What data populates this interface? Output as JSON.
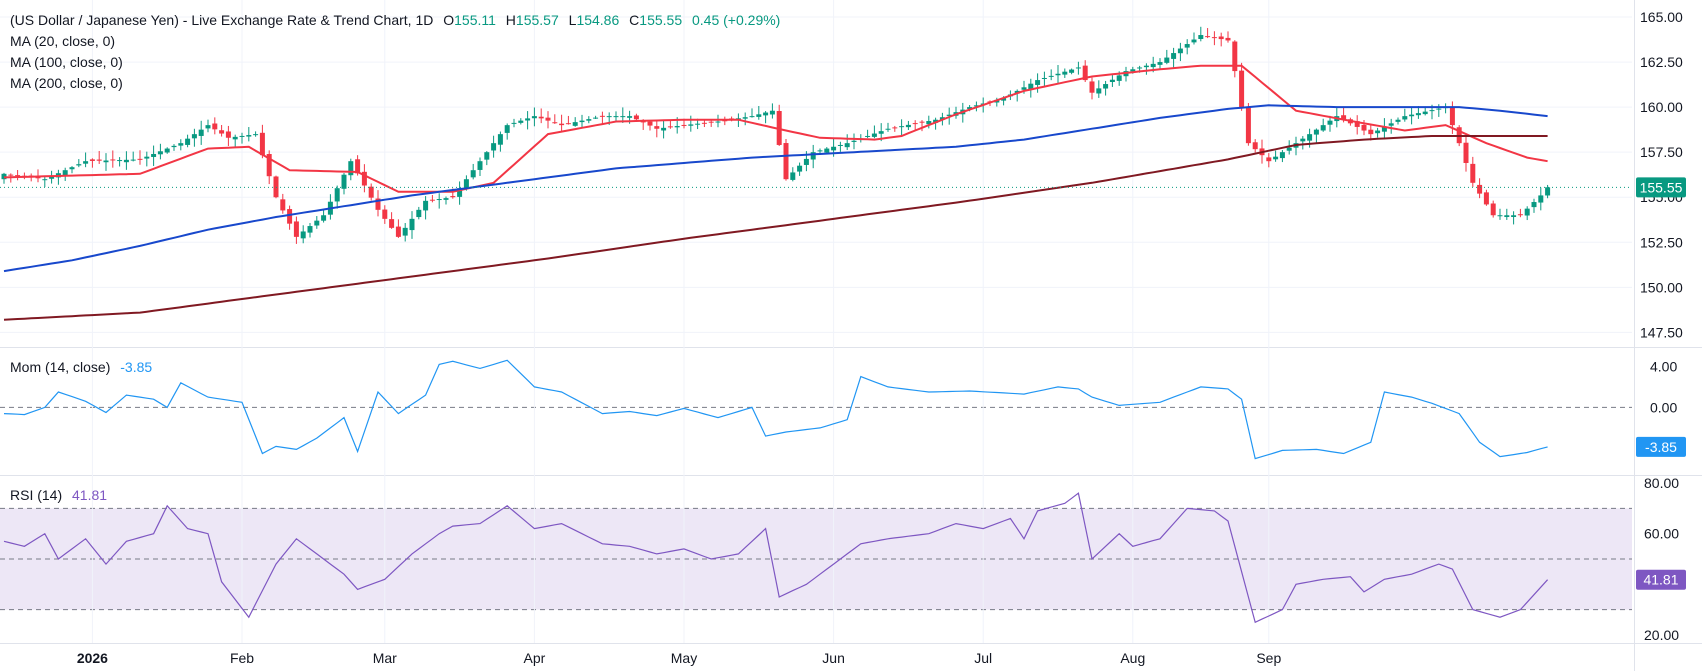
{
  "header": {
    "title": "(US Dollar / Japanese Yen) - Live Exchange Rate & Trend Chart, 1D",
    "open_label": "O",
    "open": "155.11",
    "high_label": "H",
    "high": "155.57",
    "low_label": "L",
    "low": "154.86",
    "close_label": "C",
    "close": "155.55",
    "change": "0.45 (+0.29%)",
    "ma1": "MA (20, close, 0)",
    "ma2": "MA (100, close, 0)",
    "ma3": "MA (200, close, 0)"
  },
  "mom_pane": {
    "label": "Mom (14, close)",
    "value": "-3.85"
  },
  "rsi_pane": {
    "label": "RSI (14)",
    "value": "41.81"
  },
  "colors": {
    "up": "#089981",
    "down": "#f23645",
    "ma20": "#f23645",
    "ma100": "#1848cc",
    "ma200": "#801922",
    "mom": "#2196f3",
    "rsi": "#7e57c2",
    "rsi_band": "#ede7f6",
    "grid": "#f0f3fa",
    "text": "#131722"
  },
  "chart_data": [
    {
      "type": "candlestick",
      "title": "(US Dollar / Japanese Yen) - Live Exchange Rate & Trend Chart, 1D",
      "x_ticks": [
        "2026",
        "Feb",
        "Mar",
        "Apr",
        "May",
        "Jun",
        "Jul",
        "Aug",
        "Sep"
      ],
      "y_ticks": [
        "147.50",
        "150.00",
        "152.50",
        "155.00",
        "157.50",
        "160.00",
        "162.50",
        "165.00"
      ],
      "ylim": [
        146.8,
        165.5
      ],
      "last_price": "155.55",
      "close_anchors": [
        [
          0,
          156.3
        ],
        [
          6,
          156.0
        ],
        [
          12,
          157.0
        ],
        [
          20,
          157.1
        ],
        [
          26,
          158.0
        ],
        [
          30,
          159.0
        ],
        [
          33,
          158.3
        ],
        [
          37,
          158.5
        ],
        [
          40,
          155.0
        ],
        [
          43,
          152.8
        ],
        [
          47,
          154.0
        ],
        [
          51,
          157.0
        ],
        [
          55,
          154.3
        ],
        [
          58,
          152.8
        ],
        [
          62,
          154.8
        ],
        [
          66,
          155.0
        ],
        [
          70,
          157.0
        ],
        [
          74,
          159.0
        ],
        [
          78,
          159.5
        ],
        [
          82,
          159.0
        ],
        [
          88,
          159.5
        ],
        [
          92,
          159.5
        ],
        [
          96,
          158.8
        ],
        [
          100,
          159.0
        ],
        [
          105,
          159.2
        ],
        [
          110,
          159.5
        ],
        [
          113,
          159.8
        ],
        [
          115,
          156.0
        ],
        [
          119,
          157.5
        ],
        [
          124,
          158.0
        ],
        [
          130,
          158.8
        ],
        [
          137,
          159.3
        ],
        [
          142,
          160.0
        ],
        [
          147,
          160.5
        ],
        [
          152,
          161.5
        ],
        [
          158,
          162.2
        ],
        [
          160,
          160.8
        ],
        [
          165,
          162.0
        ],
        [
          170,
          162.5
        ],
        [
          176,
          164.0
        ],
        [
          180,
          163.7
        ],
        [
          181,
          162.0
        ],
        [
          183,
          158.0
        ],
        [
          186,
          157.0
        ],
        [
          190,
          158.0
        ],
        [
          196,
          159.5
        ],
        [
          201,
          158.5
        ],
        [
          206,
          159.5
        ],
        [
          212,
          160.0
        ],
        [
          214,
          158.0
        ],
        [
          216,
          155.8
        ],
        [
          219,
          154.0
        ],
        [
          223,
          154.0
        ],
        [
          226,
          155.1
        ],
        [
          227,
          155.55
        ]
      ],
      "ma_series": [
        {
          "name": "MA (20, close, 0)",
          "anchors": [
            [
              0,
              156.1
            ],
            [
              20,
              156.3
            ],
            [
              30,
              157.7
            ],
            [
              36,
              157.8
            ],
            [
              42,
              156.5
            ],
            [
              52,
              156.4
            ],
            [
              58,
              155.3
            ],
            [
              66,
              155.3
            ],
            [
              72,
              155.8
            ],
            [
              80,
              158.5
            ],
            [
              90,
              159.2
            ],
            [
              100,
              159.3
            ],
            [
              108,
              159.3
            ],
            [
              115,
              158.7
            ],
            [
              120,
              158.3
            ],
            [
              128,
              158.2
            ],
            [
              132,
              158.4
            ],
            [
              140,
              159.6
            ],
            [
              150,
              160.9
            ],
            [
              160,
              161.7
            ],
            [
              170,
              162.1
            ],
            [
              176,
              162.3
            ],
            [
              182,
              162.3
            ],
            [
              190,
              159.8
            ],
            [
              200,
              159.1
            ],
            [
              206,
              158.7
            ],
            [
              212,
              159.0
            ],
            [
              218,
              158.0
            ],
            [
              224,
              157.2
            ],
            [
              227,
              157.0
            ]
          ]
        },
        {
          "name": "MA (100, close, 0)",
          "anchors": [
            [
              0,
              150.9
            ],
            [
              10,
              151.5
            ],
            [
              20,
              152.3
            ],
            [
              30,
              153.2
            ],
            [
              40,
              153.9
            ],
            [
              50,
              154.5
            ],
            [
              60,
              155.1
            ],
            [
              70,
              155.6
            ],
            [
              80,
              156.1
            ],
            [
              90,
              156.6
            ],
            [
              100,
              156.9
            ],
            [
              110,
              157.2
            ],
            [
              120,
              157.4
            ],
            [
              130,
              157.6
            ],
            [
              140,
              157.8
            ],
            [
              150,
              158.2
            ],
            [
              160,
              158.8
            ],
            [
              170,
              159.4
            ],
            [
              180,
              159.9
            ],
            [
              186,
              160.1
            ],
            [
              196,
              160.0
            ],
            [
              206,
              160.0
            ],
            [
              214,
              160.0
            ],
            [
              220,
              159.8
            ],
            [
              227,
              159.5
            ]
          ]
        },
        {
          "name": "MA (200, close, 0)",
          "anchors": [
            [
              0,
              148.2
            ],
            [
              20,
              148.6
            ],
            [
              40,
              149.6
            ],
            [
              60,
              150.6
            ],
            [
              80,
              151.6
            ],
            [
              100,
              152.7
            ],
            [
              120,
              153.7
            ],
            [
              140,
              154.7
            ],
            [
              160,
              155.8
            ],
            [
              180,
              157.1
            ],
            [
              190,
              157.9
            ],
            [
              200,
              158.2
            ],
            [
              210,
              158.4
            ],
            [
              218,
              158.4
            ],
            [
              227,
              158.4
            ]
          ]
        }
      ]
    },
    {
      "type": "line",
      "title": "Mom (14, close)",
      "y_ticks": [
        "0.00",
        "4.00"
      ],
      "ylim": [
        -6.4,
        5.6
      ],
      "series": [
        {
          "name": "Mom (14, close)",
          "anchors": [
            [
              0,
              -0.6
            ],
            [
              3,
              -0.7
            ],
            [
              6,
              0.0
            ],
            [
              8,
              1.5
            ],
            [
              12,
              0.6
            ],
            [
              15,
              -0.5
            ],
            [
              18,
              1.2
            ],
            [
              22,
              0.8
            ],
            [
              24,
              0.0
            ],
            [
              26,
              2.4
            ],
            [
              30,
              1.0
            ],
            [
              35,
              0.5
            ],
            [
              38,
              -4.5
            ],
            [
              40,
              -3.8
            ],
            [
              43,
              -4.1
            ],
            [
              46,
              -3.0
            ],
            [
              50,
              -1.0
            ],
            [
              52,
              -4.3
            ],
            [
              55,
              1.5
            ],
            [
              58,
              -0.6
            ],
            [
              62,
              1.2
            ],
            [
              64,
              4.2
            ],
            [
              66,
              4.5
            ],
            [
              70,
              3.8
            ],
            [
              74,
              4.6
            ],
            [
              78,
              2.0
            ],
            [
              82,
              1.5
            ],
            [
              88,
              -0.6
            ],
            [
              92,
              -0.4
            ],
            [
              96,
              -0.8
            ],
            [
              100,
              -0.1
            ],
            [
              105,
              -1.0
            ],
            [
              110,
              0.0
            ],
            [
              112,
              -2.8
            ],
            [
              115,
              -2.4
            ],
            [
              120,
              -2.0
            ],
            [
              124,
              -1.2
            ],
            [
              126,
              3.0
            ],
            [
              130,
              2.0
            ],
            [
              136,
              1.5
            ],
            [
              142,
              1.6
            ],
            [
              150,
              1.3
            ],
            [
              155,
              2.0
            ],
            [
              158,
              1.8
            ],
            [
              160,
              1.0
            ],
            [
              164,
              0.2
            ],
            [
              170,
              0.5
            ],
            [
              176,
              2.0
            ],
            [
              180,
              1.8
            ],
            [
              182,
              0.8
            ],
            [
              184,
              -5.0
            ],
            [
              188,
              -4.2
            ],
            [
              193,
              -4.1
            ],
            [
              197,
              -4.5
            ],
            [
              201,
              -3.4
            ],
            [
              203,
              1.5
            ],
            [
              207,
              1.0
            ],
            [
              210,
              0.4
            ],
            [
              214,
              -0.6
            ],
            [
              217,
              -3.4
            ],
            [
              220,
              -4.8
            ],
            [
              224,
              -4.4
            ],
            [
              227,
              -3.85
            ]
          ]
        }
      ]
    },
    {
      "type": "line",
      "title": "RSI (14)",
      "y_ticks": [
        "20.00",
        "40.00",
        "60.00",
        "80.00"
      ],
      "ylim": [
        18,
        82
      ],
      "band": [
        30,
        70
      ],
      "mid": 50,
      "series": [
        {
          "name": "RSI (14)",
          "anchors": [
            [
              0,
              57.0
            ],
            [
              3,
              55.0
            ],
            [
              6,
              60.0
            ],
            [
              8,
              50.0
            ],
            [
              12,
              58.0
            ],
            [
              15,
              48.0
            ],
            [
              18,
              57.0
            ],
            [
              22,
              60.0
            ],
            [
              24,
              71.0
            ],
            [
              27,
              62.0
            ],
            [
              30,
              60.0
            ],
            [
              32,
              41.0
            ],
            [
              36,
              27.0
            ],
            [
              40,
              48.0
            ],
            [
              43,
              58.0
            ],
            [
              46,
              52.0
            ],
            [
              50,
              44.0
            ],
            [
              52,
              38.0
            ],
            [
              56,
              42.0
            ],
            [
              60,
              52.0
            ],
            [
              64,
              60.0
            ],
            [
              66,
              63.0
            ],
            [
              70,
              64.0
            ],
            [
              74,
              71.0
            ],
            [
              78,
              62.0
            ],
            [
              82,
              64.0
            ],
            [
              88,
              56.0
            ],
            [
              92,
              55.0
            ],
            [
              96,
              52.0
            ],
            [
              100,
              54.0
            ],
            [
              104,
              50.0
            ],
            [
              108,
              52.0
            ],
            [
              112,
              62.0
            ],
            [
              114,
              35.0
            ],
            [
              118,
              40.0
            ],
            [
              122,
              48.0
            ],
            [
              126,
              56.0
            ],
            [
              130,
              58.0
            ],
            [
              136,
              60.0
            ],
            [
              140,
              64.0
            ],
            [
              144,
              62.0
            ],
            [
              148,
              66.0
            ],
            [
              150,
              58.0
            ],
            [
              152,
              69.0
            ],
            [
              156,
              72.0
            ],
            [
              158,
              76.0
            ],
            [
              160,
              50.0
            ],
            [
              164,
              60.0
            ],
            [
              166,
              55.0
            ],
            [
              170,
              58.0
            ],
            [
              174,
              70.0
            ],
            [
              178,
              69.0
            ],
            [
              180,
              65.0
            ],
            [
              182,
              45.0
            ],
            [
              184,
              25.0
            ],
            [
              188,
              30.0
            ],
            [
              190,
              40.0
            ],
            [
              194,
              42.0
            ],
            [
              198,
              43.0
            ],
            [
              200,
              37.0
            ],
            [
              203,
              42.0
            ],
            [
              207,
              44.0
            ],
            [
              211,
              48.0
            ],
            [
              213,
              46.0
            ],
            [
              216,
              30.0
            ],
            [
              220,
              27.0
            ],
            [
              223,
              30.0
            ],
            [
              227,
              41.81
            ]
          ]
        }
      ]
    }
  ]
}
